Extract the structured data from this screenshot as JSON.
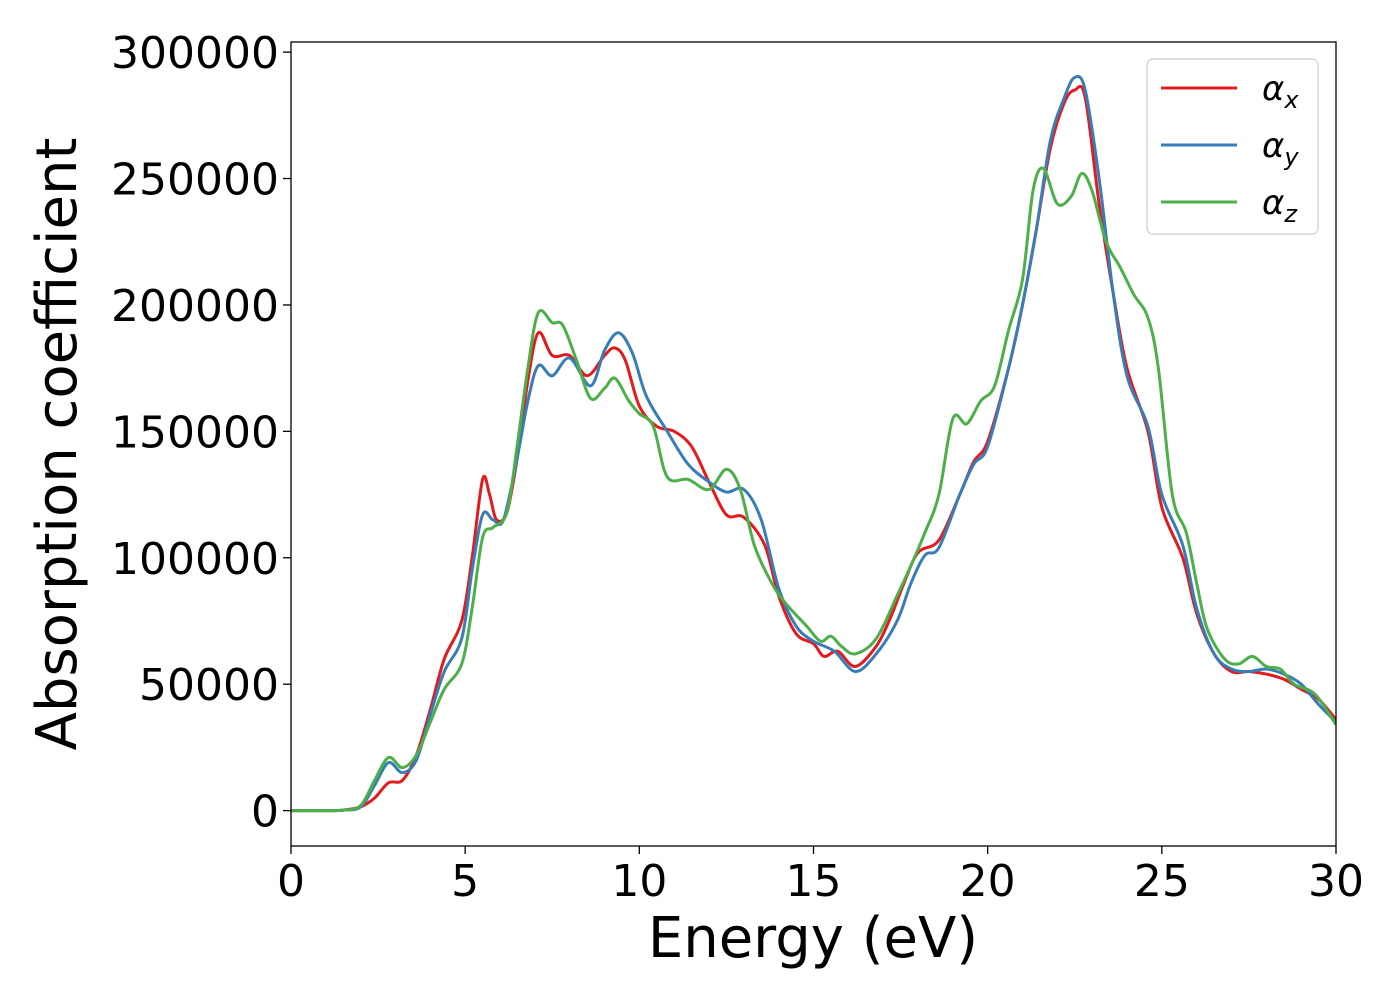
{
  "chart_data": {
    "type": "line",
    "title": "",
    "xlabel": "Energy (eV)",
    "ylabel": "Absorption coefficient",
    "xlim": [
      0,
      30
    ],
    "ylim": [
      -14000,
      304000
    ],
    "xticks": [
      0,
      5,
      10,
      15,
      20,
      25,
      30
    ],
    "yticks": [
      0,
      50000,
      100000,
      150000,
      200000,
      250000,
      300000
    ],
    "xtick_labels": [
      "0",
      "5",
      "10",
      "15",
      "20",
      "25",
      "30"
    ],
    "ytick_labels": [
      "0",
      "50000",
      "100000",
      "150000",
      "200000",
      "250000",
      "300000"
    ],
    "grid": false,
    "legend": {
      "position": "top-right",
      "entries": [
        {
          "symbol": "α",
          "sub": "x"
        },
        {
          "symbol": "α",
          "sub": "y"
        },
        {
          "symbol": "α",
          "sub": "z"
        }
      ]
    },
    "series": [
      {
        "name": "α_x",
        "color": "#e41a1c",
        "points": [
          [
            0,
            0
          ],
          [
            1,
            0
          ],
          [
            1.5,
            200
          ],
          [
            2,
            1500
          ],
          [
            2.4,
            5000
          ],
          [
            2.8,
            11000
          ],
          [
            3.2,
            12000
          ],
          [
            3.6,
            22000
          ],
          [
            4,
            40000
          ],
          [
            4.4,
            60000
          ],
          [
            4.9,
            75000
          ],
          [
            5.2,
            100000
          ],
          [
            5.5,
            131000
          ],
          [
            5.7,
            125000
          ],
          [
            5.9,
            115000
          ],
          [
            6.2,
            118000
          ],
          [
            6.5,
            140000
          ],
          [
            6.8,
            170000
          ],
          [
            7.1,
            189000
          ],
          [
            7.5,
            180000
          ],
          [
            8,
            180000
          ],
          [
            8.5,
            172000
          ],
          [
            9,
            180000
          ],
          [
            9.3,
            183000
          ],
          [
            9.6,
            178000
          ],
          [
            10,
            160000
          ],
          [
            10.5,
            152000
          ],
          [
            11,
            150000
          ],
          [
            11.5,
            144000
          ],
          [
            12,
            130000
          ],
          [
            12.5,
            117000
          ],
          [
            13,
            116000
          ],
          [
            13.6,
            105000
          ],
          [
            14,
            85000
          ],
          [
            14.5,
            70000
          ],
          [
            15,
            66000
          ],
          [
            15.3,
            61000
          ],
          [
            15.7,
            63000
          ],
          [
            16.2,
            57000
          ],
          [
            16.8,
            65000
          ],
          [
            17.2,
            76000
          ],
          [
            17.6,
            90000
          ],
          [
            18,
            102000
          ],
          [
            18.6,
            107000
          ],
          [
            19.2,
            125000
          ],
          [
            19.6,
            138000
          ],
          [
            20,
            146000
          ],
          [
            20.6,
            175000
          ],
          [
            21,
            200000
          ],
          [
            21.4,
            230000
          ],
          [
            21.8,
            262000
          ],
          [
            22.2,
            280000
          ],
          [
            22.5,
            285000
          ],
          [
            22.8,
            282000
          ],
          [
            23.2,
            240000
          ],
          [
            23.6,
            205000
          ],
          [
            24,
            175000
          ],
          [
            24.6,
            150000
          ],
          [
            25,
            120000
          ],
          [
            25.6,
            100000
          ],
          [
            26,
            78000
          ],
          [
            26.5,
            62000
          ],
          [
            27,
            55000
          ],
          [
            27.5,
            55000
          ],
          [
            28,
            54000
          ],
          [
            28.5,
            52000
          ],
          [
            29,
            48000
          ],
          [
            29.5,
            44000
          ],
          [
            30,
            36000
          ]
        ]
      },
      {
        "name": "α_y",
        "color": "#377eb8",
        "points": [
          [
            0,
            0
          ],
          [
            1,
            0
          ],
          [
            1.5,
            200
          ],
          [
            2,
            1500
          ],
          [
            2.4,
            10000
          ],
          [
            2.8,
            19000
          ],
          [
            3.2,
            15000
          ],
          [
            3.6,
            20000
          ],
          [
            4,
            38000
          ],
          [
            4.4,
            55000
          ],
          [
            4.9,
            68000
          ],
          [
            5.2,
            95000
          ],
          [
            5.5,
            117000
          ],
          [
            5.8,
            115000
          ],
          [
            6.1,
            115000
          ],
          [
            6.5,
            140000
          ],
          [
            6.8,
            162000
          ],
          [
            7.1,
            176000
          ],
          [
            7.5,
            172000
          ],
          [
            8,
            179000
          ],
          [
            8.6,
            168000
          ],
          [
            9,
            182000
          ],
          [
            9.4,
            189000
          ],
          [
            9.8,
            181000
          ],
          [
            10.2,
            164000
          ],
          [
            10.8,
            150000
          ],
          [
            11.4,
            137000
          ],
          [
            12,
            130000
          ],
          [
            12.5,
            126000
          ],
          [
            13,
            127000
          ],
          [
            13.5,
            115000
          ],
          [
            14,
            88000
          ],
          [
            14.5,
            73000
          ],
          [
            15,
            67000
          ],
          [
            15.6,
            63000
          ],
          [
            16.2,
            55000
          ],
          [
            16.8,
            62000
          ],
          [
            17.4,
            75000
          ],
          [
            17.8,
            90000
          ],
          [
            18.2,
            101000
          ],
          [
            18.6,
            104000
          ],
          [
            19.2,
            125000
          ],
          [
            19.6,
            137000
          ],
          [
            20,
            144000
          ],
          [
            20.6,
            175000
          ],
          [
            21,
            200000
          ],
          [
            21.4,
            230000
          ],
          [
            21.8,
            265000
          ],
          [
            22.2,
            282000
          ],
          [
            22.5,
            290000
          ],
          [
            22.8,
            285000
          ],
          [
            23.2,
            250000
          ],
          [
            23.6,
            205000
          ],
          [
            24,
            172000
          ],
          [
            24.6,
            152000
          ],
          [
            25,
            125000
          ],
          [
            25.6,
            105000
          ],
          [
            26,
            80000
          ],
          [
            26.5,
            62000
          ],
          [
            27,
            56000
          ],
          [
            27.5,
            55000
          ],
          [
            28,
            56000
          ],
          [
            28.5,
            54000
          ],
          [
            29,
            50000
          ],
          [
            29.5,
            42000
          ],
          [
            30,
            35000
          ]
        ]
      },
      {
        "name": "α_z",
        "color": "#4daf4a",
        "points": [
          [
            0,
            0
          ],
          [
            1,
            0
          ],
          [
            1.5,
            200
          ],
          [
            2,
            2000
          ],
          [
            2.4,
            12000
          ],
          [
            2.8,
            21000
          ],
          [
            3.2,
            17000
          ],
          [
            3.6,
            22000
          ],
          [
            4,
            35000
          ],
          [
            4.4,
            48000
          ],
          [
            4.9,
            58000
          ],
          [
            5.2,
            80000
          ],
          [
            5.5,
            108000
          ],
          [
            5.8,
            112000
          ],
          [
            6.2,
            118000
          ],
          [
            6.5,
            145000
          ],
          [
            6.8,
            175000
          ],
          [
            7.1,
            197000
          ],
          [
            7.5,
            193000
          ],
          [
            7.8,
            192000
          ],
          [
            8.2,
            178000
          ],
          [
            8.6,
            163000
          ],
          [
            9,
            167000
          ],
          [
            9.3,
            171000
          ],
          [
            9.7,
            162000
          ],
          [
            10,
            157000
          ],
          [
            10.4,
            152000
          ],
          [
            10.8,
            132000
          ],
          [
            11.4,
            131000
          ],
          [
            12,
            127000
          ],
          [
            12.5,
            135000
          ],
          [
            12.9,
            127000
          ],
          [
            13.3,
            105000
          ],
          [
            13.8,
            90000
          ],
          [
            14.2,
            82000
          ],
          [
            14.8,
            73000
          ],
          [
            15.2,
            67000
          ],
          [
            15.5,
            69000
          ],
          [
            15.8,
            65000
          ],
          [
            16.2,
            62000
          ],
          [
            16.8,
            68000
          ],
          [
            17.4,
            85000
          ],
          [
            17.8,
            97000
          ],
          [
            18.2,
            110000
          ],
          [
            18.6,
            125000
          ],
          [
            19,
            155000
          ],
          [
            19.4,
            153000
          ],
          [
            19.8,
            162000
          ],
          [
            20.2,
            168000
          ],
          [
            20.6,
            190000
          ],
          [
            21,
            210000
          ],
          [
            21.3,
            245000
          ],
          [
            21.6,
            254000
          ],
          [
            22,
            240000
          ],
          [
            22.4,
            243000
          ],
          [
            22.7,
            252000
          ],
          [
            23,
            245000
          ],
          [
            23.4,
            225000
          ],
          [
            23.8,
            215000
          ],
          [
            24.2,
            204000
          ],
          [
            24.6,
            195000
          ],
          [
            24.9,
            175000
          ],
          [
            25.3,
            125000
          ],
          [
            25.7,
            110000
          ],
          [
            26,
            90000
          ],
          [
            26.3,
            72000
          ],
          [
            26.8,
            60000
          ],
          [
            27.2,
            58000
          ],
          [
            27.6,
            61000
          ],
          [
            28,
            57000
          ],
          [
            28.4,
            56000
          ],
          [
            28.8,
            50000
          ],
          [
            29.4,
            46000
          ],
          [
            30,
            34000
          ]
        ]
      }
    ]
  }
}
